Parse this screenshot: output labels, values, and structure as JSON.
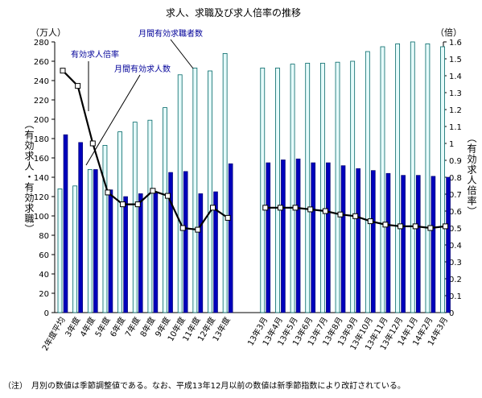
{
  "chart_data": {
    "type": "bar+line",
    "title": "求人、求職及び求人倍率の推移",
    "y_left_unit": "（万人）",
    "y_right_unit": "（倍）",
    "y_left_label": "（有効求人・有効求職）",
    "y_right_label": "（有効求人倍率）",
    "y_left_range": [
      0,
      280
    ],
    "y_left_ticks": [
      0,
      20,
      40,
      60,
      80,
      100,
      120,
      140,
      160,
      180,
      200,
      220,
      240,
      260,
      280
    ],
    "y_right_range": [
      0,
      1.6
    ],
    "y_right_ticks": [
      "0",
      "0.1",
      "0.2",
      "0.3",
      "0.4",
      "0.5",
      "0.6",
      "0.7",
      "0.8",
      "0.9",
      "1",
      "1.1",
      "1.2",
      "1.3",
      "1.4",
      "1.5",
      "1.6"
    ],
    "categories": [
      "2年度平均",
      "3年度",
      "4年度",
      "5年度",
      "6年度",
      "7年度",
      "8年度",
      "9年度",
      "10年度",
      "11年度",
      "12年度",
      "13年度",
      "13年3月",
      "13年4月",
      "13年5月",
      "13年6月",
      "13年7月",
      "13年8月",
      "13年9月",
      "13年10月",
      "13年11月",
      "13年12月",
      "14年1月",
      "14年2月",
      "14年3月"
    ],
    "gap_after_index": 11,
    "series": [
      {
        "name": "月間有効求職者数",
        "type": "bar",
        "axis": "left",
        "color": "#e6fbfb",
        "stroke": "#006666",
        "values": [
          128,
          131,
          148,
          173,
          187,
          197,
          199,
          212,
          246,
          253,
          250,
          268,
          253,
          253,
          257,
          258,
          258,
          259,
          260,
          270,
          275,
          278,
          280,
          278,
          275
        ]
      },
      {
        "name": "月間有効求人数",
        "type": "bar",
        "axis": "left",
        "color": "#0000bb",
        "stroke": "#000066",
        "values": [
          184,
          176,
          148,
          127,
          120,
          123,
          125,
          145,
          146,
          123,
          125,
          154,
          155,
          158,
          159,
          155,
          155,
          152,
          149,
          147,
          144,
          142,
          142,
          141,
          140
        ]
      },
      {
        "name": "有効求人倍率",
        "type": "line",
        "axis": "right",
        "color": "#000000",
        "values": [
          1.43,
          1.34,
          1.0,
          0.71,
          0.64,
          0.64,
          0.72,
          0.69,
          0.5,
          0.49,
          0.62,
          0.56,
          0.62,
          0.62,
          0.62,
          0.61,
          0.6,
          0.58,
          0.57,
          0.54,
          0.52,
          0.51,
          0.51,
          0.5,
          0.51
        ]
      }
    ],
    "annotations": [
      {
        "text": "有効求人倍率"
      },
      {
        "text": "月間有効求人数"
      },
      {
        "text": "月間有効求職者数"
      }
    ],
    "note": "（注）　月別の数値は季節調整値である。なお、平成13年12月以前の数値は新季節指数により改訂されている。"
  }
}
